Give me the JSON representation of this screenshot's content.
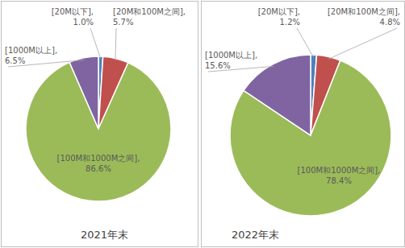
{
  "chart_data": [
    {
      "type": "pie",
      "title": "2021年末",
      "categories": [
        "[20M以下],",
        "[20M和100M之间],",
        "[100M和1000M之间],",
        "[1000M以上],"
      ],
      "values": [
        1.0,
        5.7,
        86.6,
        6.5
      ],
      "value_labels": [
        "1.0%",
        "5.7%",
        "86.6%",
        "6.5%"
      ],
      "colors": [
        "#4f81bd",
        "#c0504d",
        "#9bbb59",
        "#8064a2"
      ],
      "data_labels": true
    },
    {
      "type": "pie",
      "title": "2022年末",
      "categories": [
        "[20M以下],",
        "[20M和100M之间],",
        "[100M和1000M之间],",
        "[1000M以上],"
      ],
      "values": [
        1.2,
        4.8,
        78.4,
        15.6
      ],
      "value_labels": [
        "1.2%",
        "4.8%",
        "78.4%",
        "15.6%"
      ],
      "colors": [
        "#4f81bd",
        "#c0504d",
        "#9bbb59",
        "#8064a2"
      ],
      "data_labels": true
    }
  ]
}
